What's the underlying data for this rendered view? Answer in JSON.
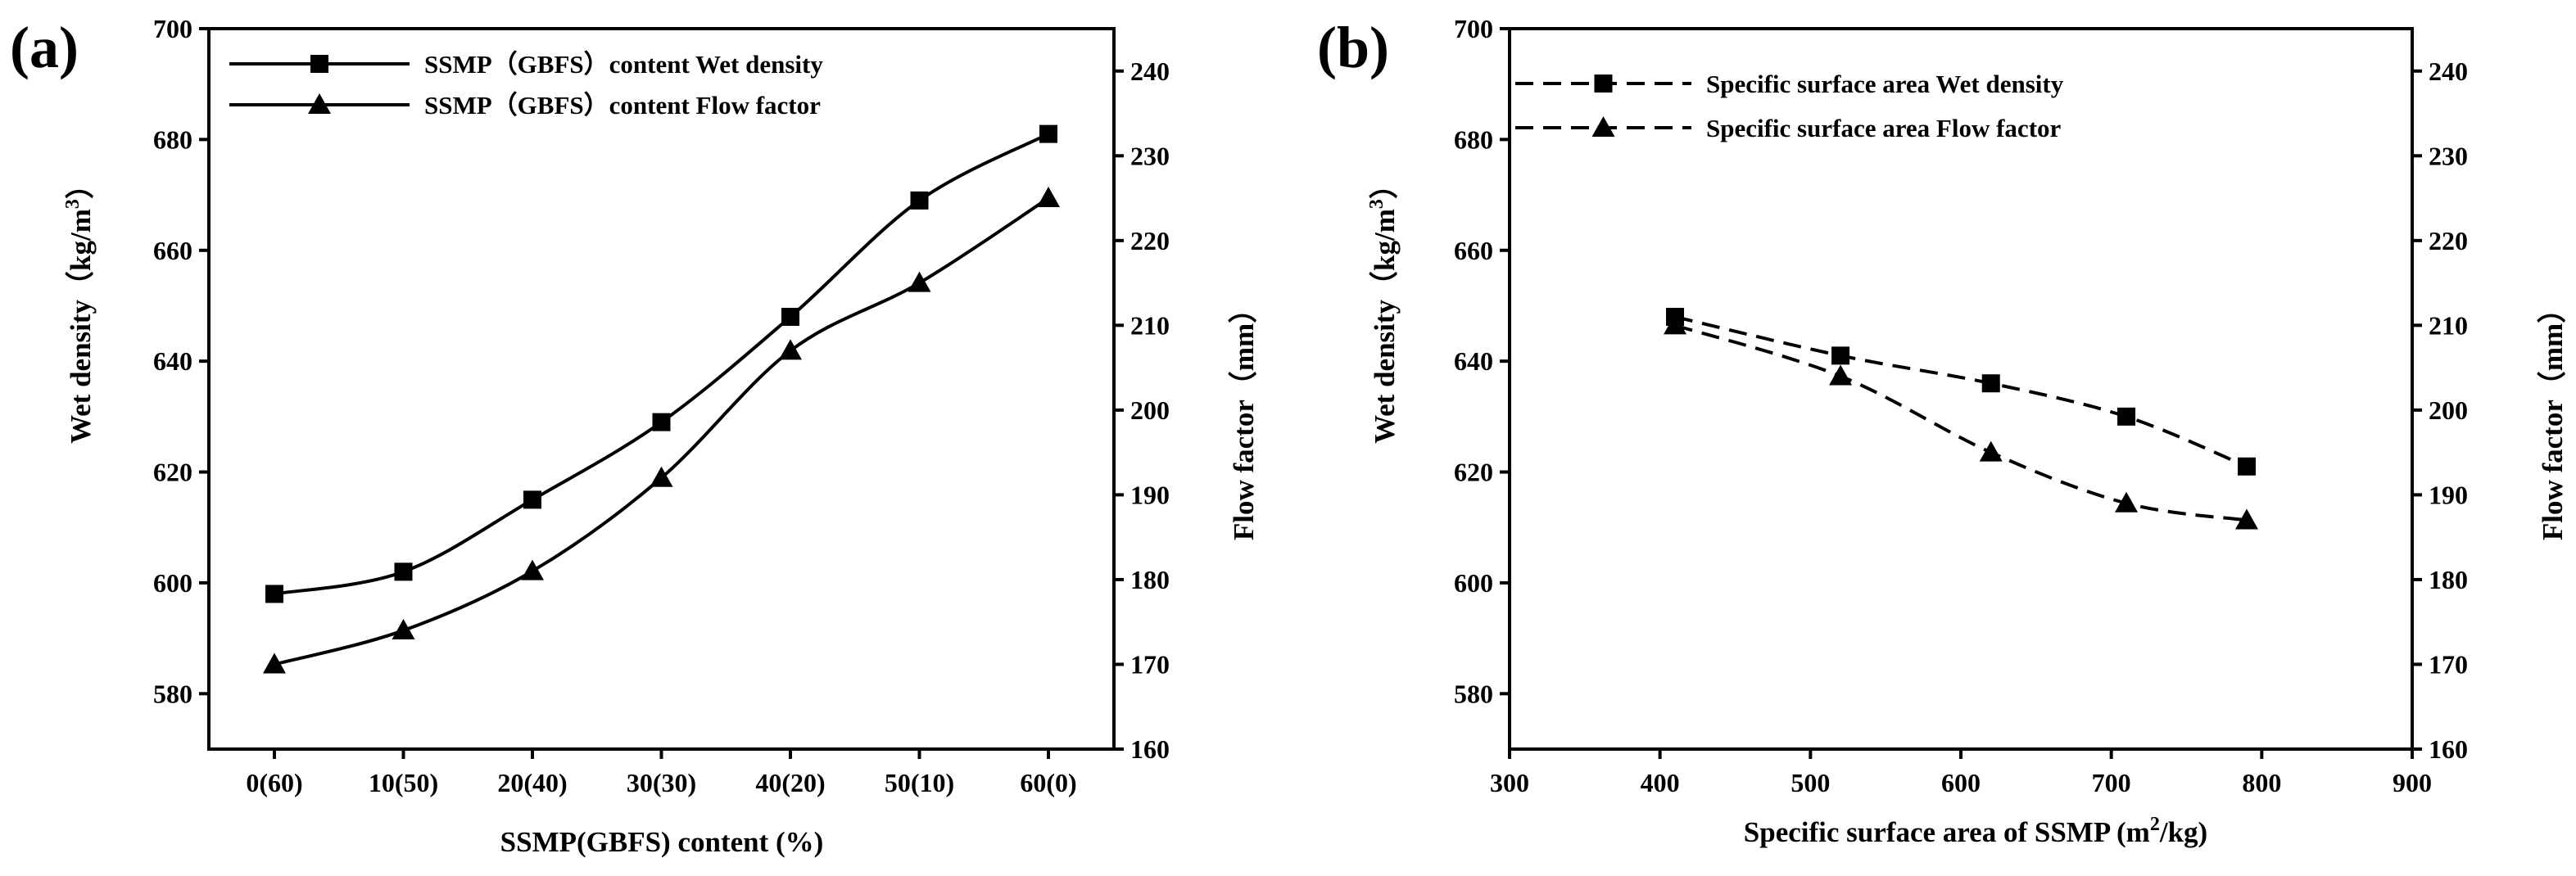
{
  "chart_data": [
    {
      "panel_label": "(a)",
      "type": "line",
      "categories": [
        "0(60)",
        "10(50)",
        "20(40)",
        "30(30)",
        "40(20)",
        "50(10)",
        "60(0)"
      ],
      "xlabel": "SSMP(GBFS) content (%)",
      "ylabel": "Wet density（kg/m",
      "ylabel_sup": "3",
      "ylabel_end": "）",
      "y2label": "Flow factor（mm）",
      "ylim": [
        570,
        700
      ],
      "y2lim": [
        160,
        245
      ],
      "yticks": [
        580,
        600,
        620,
        640,
        660,
        680,
        700
      ],
      "y2ticks": [
        160,
        170,
        180,
        190,
        200,
        210,
        220,
        230,
        240
      ],
      "legend_position": "top-left",
      "series": [
        {
          "name": "SSMP（GBFS）content Wet density",
          "axis": "left",
          "marker": "square",
          "style": "solid",
          "values": [
            598,
            602,
            615,
            629,
            648,
            669,
            681
          ]
        },
        {
          "name": "SSMP（GBFS）content Flow factor",
          "axis": "right",
          "marker": "triangle",
          "style": "solid",
          "values": [
            170,
            174,
            181,
            192,
            207,
            215,
            225
          ]
        }
      ]
    },
    {
      "panel_label": "(b)",
      "type": "line",
      "xlabel": "Specific surface area of  SSMP (m",
      "xlabel_sup": "2",
      "xlabel_end": "/kg)",
      "ylabel": "Wet density（kg/m",
      "ylabel_sup": "3",
      "ylabel_end": "）",
      "y2label": "Flow factor（mm）",
      "xlim": [
        300,
        900
      ],
      "xticks": [
        300,
        400,
        500,
        600,
        700,
        800,
        900
      ],
      "ylim": [
        570,
        700
      ],
      "y2lim": [
        160,
        245
      ],
      "yticks": [
        580,
        600,
        620,
        640,
        660,
        680,
        700
      ],
      "y2ticks": [
        160,
        170,
        180,
        190,
        200,
        210,
        220,
        230,
        240
      ],
      "legend_position": "top-left",
      "x": [
        410,
        520,
        620,
        710,
        790
      ],
      "series": [
        {
          "name": "Specific surface area  Wet density",
          "axis": "left",
          "marker": "square",
          "style": "dashed",
          "values": [
            648,
            641,
            636,
            630,
            621
          ]
        },
        {
          "name": "Specific surface area Flow factor",
          "axis": "right",
          "marker": "triangle",
          "style": "dashed",
          "values": [
            210,
            204,
            195,
            189,
            187
          ]
        }
      ]
    }
  ]
}
